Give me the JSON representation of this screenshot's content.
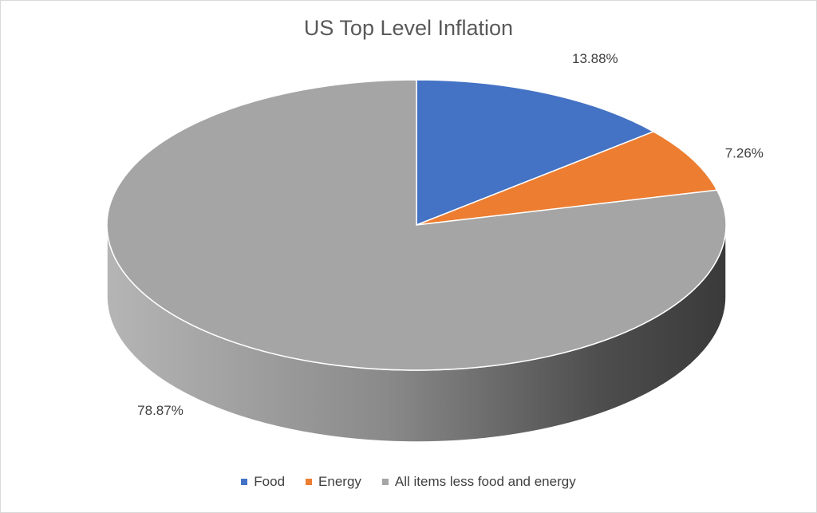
{
  "chart_data": {
    "type": "pie",
    "title": "US Top Level Inflation",
    "legend_position": "bottom",
    "categories": [
      "Food",
      "Energy",
      "All items less food and energy"
    ],
    "values": [
      13.88,
      7.26,
      78.87
    ],
    "labels": [
      "13.88%",
      "7.26%",
      "78.87%"
    ],
    "colors": [
      "#4472c4",
      "#ed7d31",
      "#a5a5a5"
    ]
  }
}
